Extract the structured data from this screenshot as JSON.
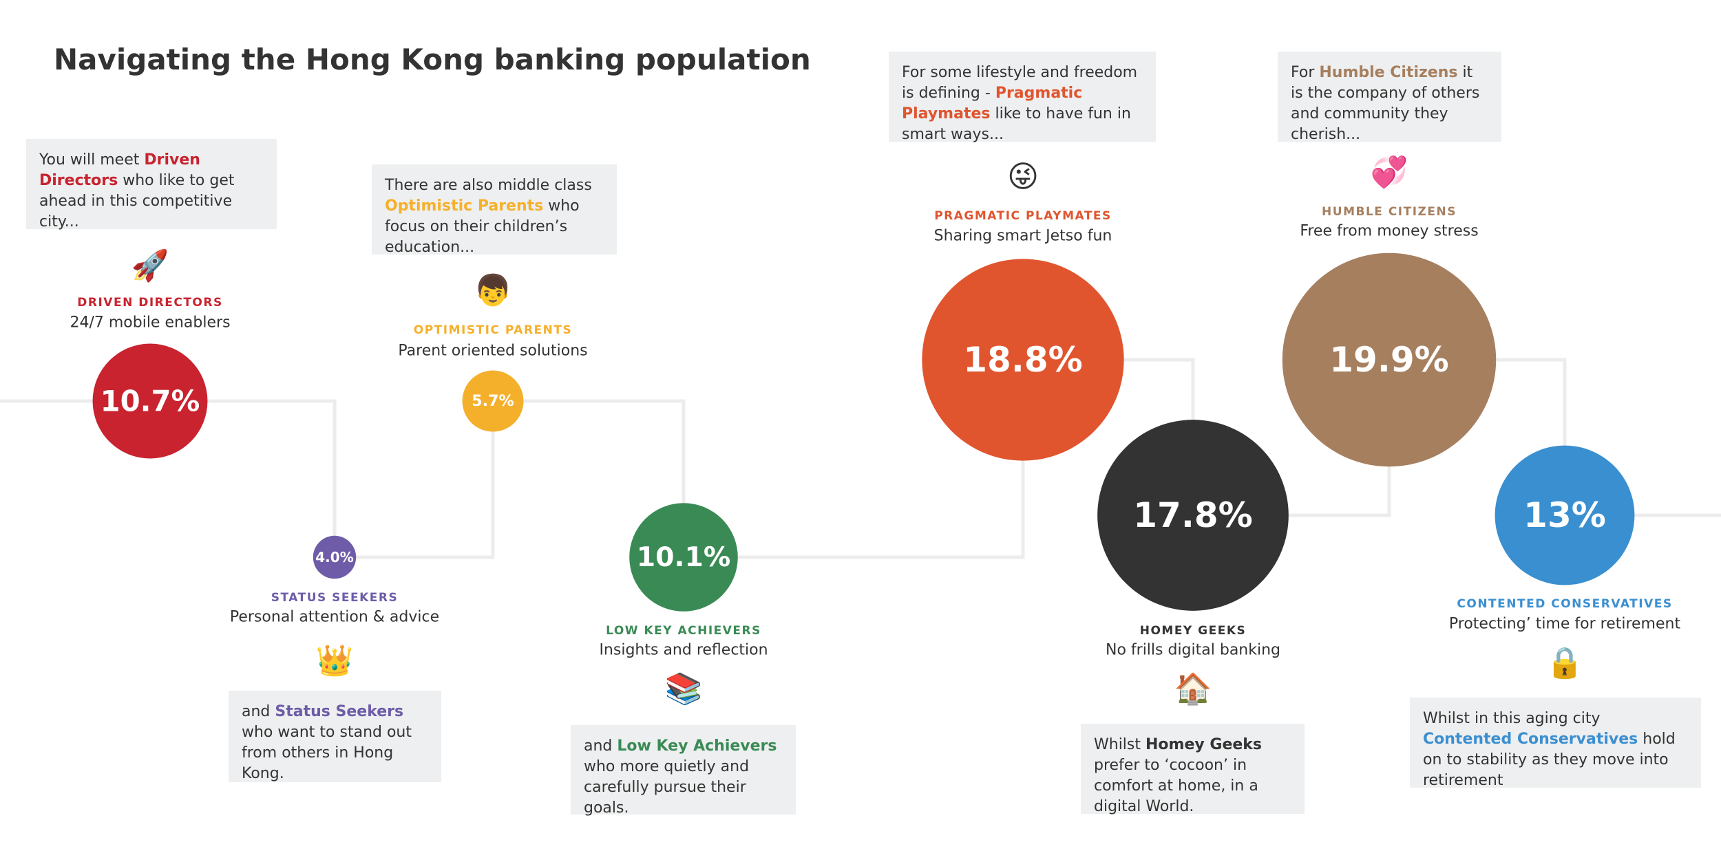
{
  "title": "Navigating the Hong Kong banking population",
  "segments": [
    {
      "name": "DRIVEN DIRECTORS",
      "tagline": "24/7 mobile enablers",
      "icon": "🚀",
      "share": 10.7,
      "share_label": "10.7%",
      "color": "#c8232f",
      "box": {
        "before": "You will meet ",
        "highlight": "Driven Directors",
        "after": " who like to get ahead in this competitive city..."
      }
    },
    {
      "name": "STATUS SEEKERS",
      "tagline": "Personal attention & advice",
      "icon": "👑",
      "share": 4.0,
      "share_label": "4.0%",
      "color": "#6e5ca8",
      "box": {
        "before": "and ",
        "highlight": "Status Seekers",
        "after": " who want to stand out from others in Hong Kong."
      }
    },
    {
      "name": "OPTIMISTIC PARENTS",
      "tagline": "Parent oriented solutions",
      "icon": "👦",
      "share": 5.7,
      "share_label": "5.7%",
      "color": "#f5b02b",
      "box": {
        "before": "There are also middle class ",
        "highlight": "Optimistic Parents",
        "after": " who focus on their children’s education..."
      }
    },
    {
      "name": "LOW KEY ACHIEVERS",
      "tagline": "Insights and reflection",
      "icon": "📚",
      "share": 10.1,
      "share_label": "10.1%",
      "color": "#3a8a55",
      "box": {
        "before": "and ",
        "highlight": "Low Key Achievers",
        "after": " who more quietly and carefully pursue their goals."
      }
    },
    {
      "name": "PRAGMATIC PLAYMATES",
      "tagline": "Sharing smart Jetso fun",
      "icon": "😜",
      "share": 18.8,
      "share_label": "18.8%",
      "color": "#e0552e",
      "box": {
        "before": "For some lifestyle and freedom is defining - ",
        "highlight": "Pragmatic Playmates",
        "after": " like to have fun in smart ways..."
      }
    },
    {
      "name": "HOMEY GEEKS",
      "tagline": "No frills digital banking",
      "icon": "🏠",
      "share": 17.8,
      "share_label": "17.8%",
      "color": "#333333",
      "box": {
        "before": "Whilst ",
        "highlight": "Homey Geeks",
        "after": " prefer to ‘cocoon’ in comfort at home, in a digital World."
      }
    },
    {
      "name": "HUMBLE CITIZENS",
      "tagline": "Free from money stress",
      "icon": "💞",
      "share": 19.9,
      "share_label": "19.9%",
      "color": "#a67f5f",
      "box": {
        "before": "For ",
        "highlight": "Humble Citizens",
        "after": " it is the company of others and community they cherish..."
      }
    },
    {
      "name": "CONTENTED CONSERVATIVES",
      "tagline": "Protecting’ time for retirement",
      "icon": "🔒",
      "share": 13,
      "share_label": "13%",
      "color": "#3a8fd0",
      "box": {
        "before": "Whilst in this aging city ",
        "highlight": "Contented Conservatives",
        "after": " hold on to stability as they move into retirement"
      }
    }
  ]
}
